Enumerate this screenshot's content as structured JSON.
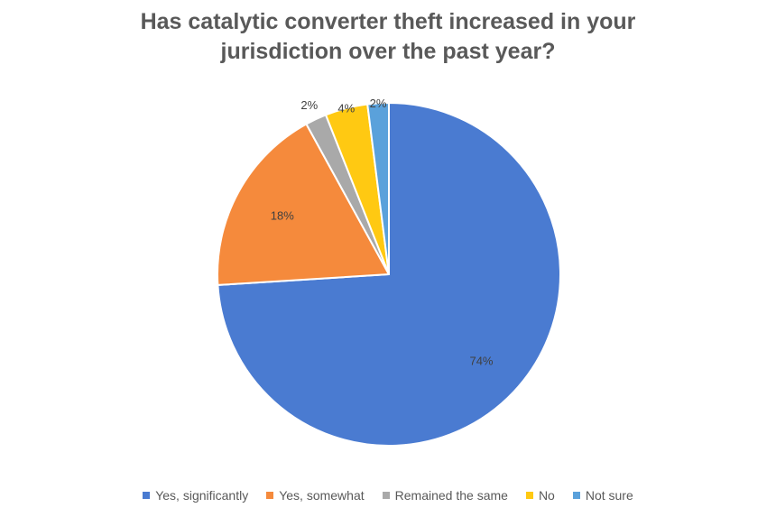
{
  "chart_data": {
    "type": "pie",
    "title": "Has catalytic converter theft increased in your jurisdiction over the past year?",
    "title_lines": [
      "Has catalytic converter theft increased in your",
      "jurisdiction over the past year?"
    ],
    "legend_position": "bottom",
    "start": "top",
    "direction": "clockwise",
    "categories": [
      "Yes, significantly",
      "Yes, somewhat",
      "Remained the same",
      "No",
      "Not sure"
    ],
    "values": [
      74,
      18,
      2,
      4,
      2
    ],
    "labels": [
      "74%",
      "18%",
      "2%",
      "4%",
      "2%"
    ],
    "colors": [
      "#4A7BD1",
      "#F58A3C",
      "#A9A9A9",
      "#FFC912",
      "#5AA1DB"
    ]
  }
}
